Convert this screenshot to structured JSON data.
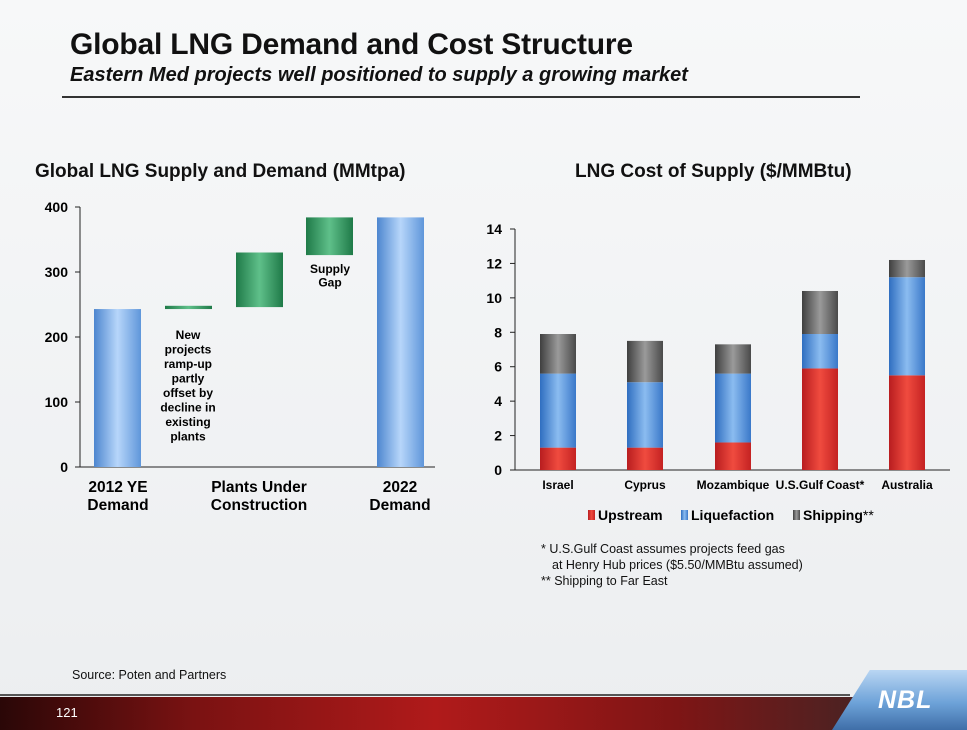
{
  "slide": {
    "title": "Global LNG Demand and Cost Structure",
    "subtitle": "Eastern Med projects well positioned to supply a growing market",
    "source": "Source: Poten and Partners",
    "page_number": "121",
    "logo": "NBL",
    "footnotes": [
      "* U.S.Gulf Coast assumes projects feed gas",
      "at Henry Hub prices ($5.50/MMBtu assumed)",
      "** Shipping to Far East"
    ]
  },
  "colors": {
    "blue_bar": "#6fa6e6",
    "green_bar": "#2e8b57",
    "upstream": "#d9262b",
    "liquefaction": "#4a86d6",
    "shipping": "#6b6b6b"
  },
  "chart_data": [
    {
      "type": "bar",
      "subtype": "waterfall",
      "title": "Global LNG Supply and Demand (MMtpa)",
      "ylim": [
        0,
        400
      ],
      "yticks": [
        0,
        100,
        200,
        300,
        400
      ],
      "category_labels": [
        "2012 YE\nDemand",
        "Plants Under\nConstruction",
        "2022\nDemand"
      ],
      "bars": [
        {
          "kind": "total",
          "start": 0,
          "end": 243,
          "color": "blue"
        },
        {
          "kind": "delta",
          "start": 243,
          "end": 248,
          "color": "green"
        },
        {
          "kind": "delta",
          "start": 246,
          "end": 330,
          "color": "green"
        },
        {
          "kind": "delta",
          "start": 326,
          "end": 384,
          "color": "green"
        },
        {
          "kind": "total",
          "start": 0,
          "end": 384,
          "color": "blue"
        }
      ],
      "annotations": [
        "New\nprojects\nramp-up\npartly\noffset by\ndecline in\nexisting\nplants",
        "Supply\nGap"
      ]
    },
    {
      "type": "bar",
      "subtype": "stacked",
      "title": "LNG Cost of Supply ($/MMBtu)",
      "categories": [
        "Israel",
        "Cyprus",
        "Mozambique",
        "U.S.Gulf Coast*",
        "Australia"
      ],
      "ylim": [
        0,
        14
      ],
      "yticks": [
        0,
        2,
        4,
        6,
        8,
        10,
        12,
        14
      ],
      "series": [
        {
          "name": "Upstream",
          "legend_suffix": "",
          "values": [
            1.3,
            1.3,
            1.6,
            5.9,
            5.5
          ]
        },
        {
          "name": "Liquefaction",
          "legend_suffix": "",
          "values": [
            4.3,
            3.8,
            4.0,
            2.0,
            5.7
          ]
        },
        {
          "name": "Shipping",
          "legend_suffix": "**",
          "values": [
            2.3,
            2.4,
            1.7,
            2.5,
            1.0
          ]
        }
      ]
    }
  ]
}
